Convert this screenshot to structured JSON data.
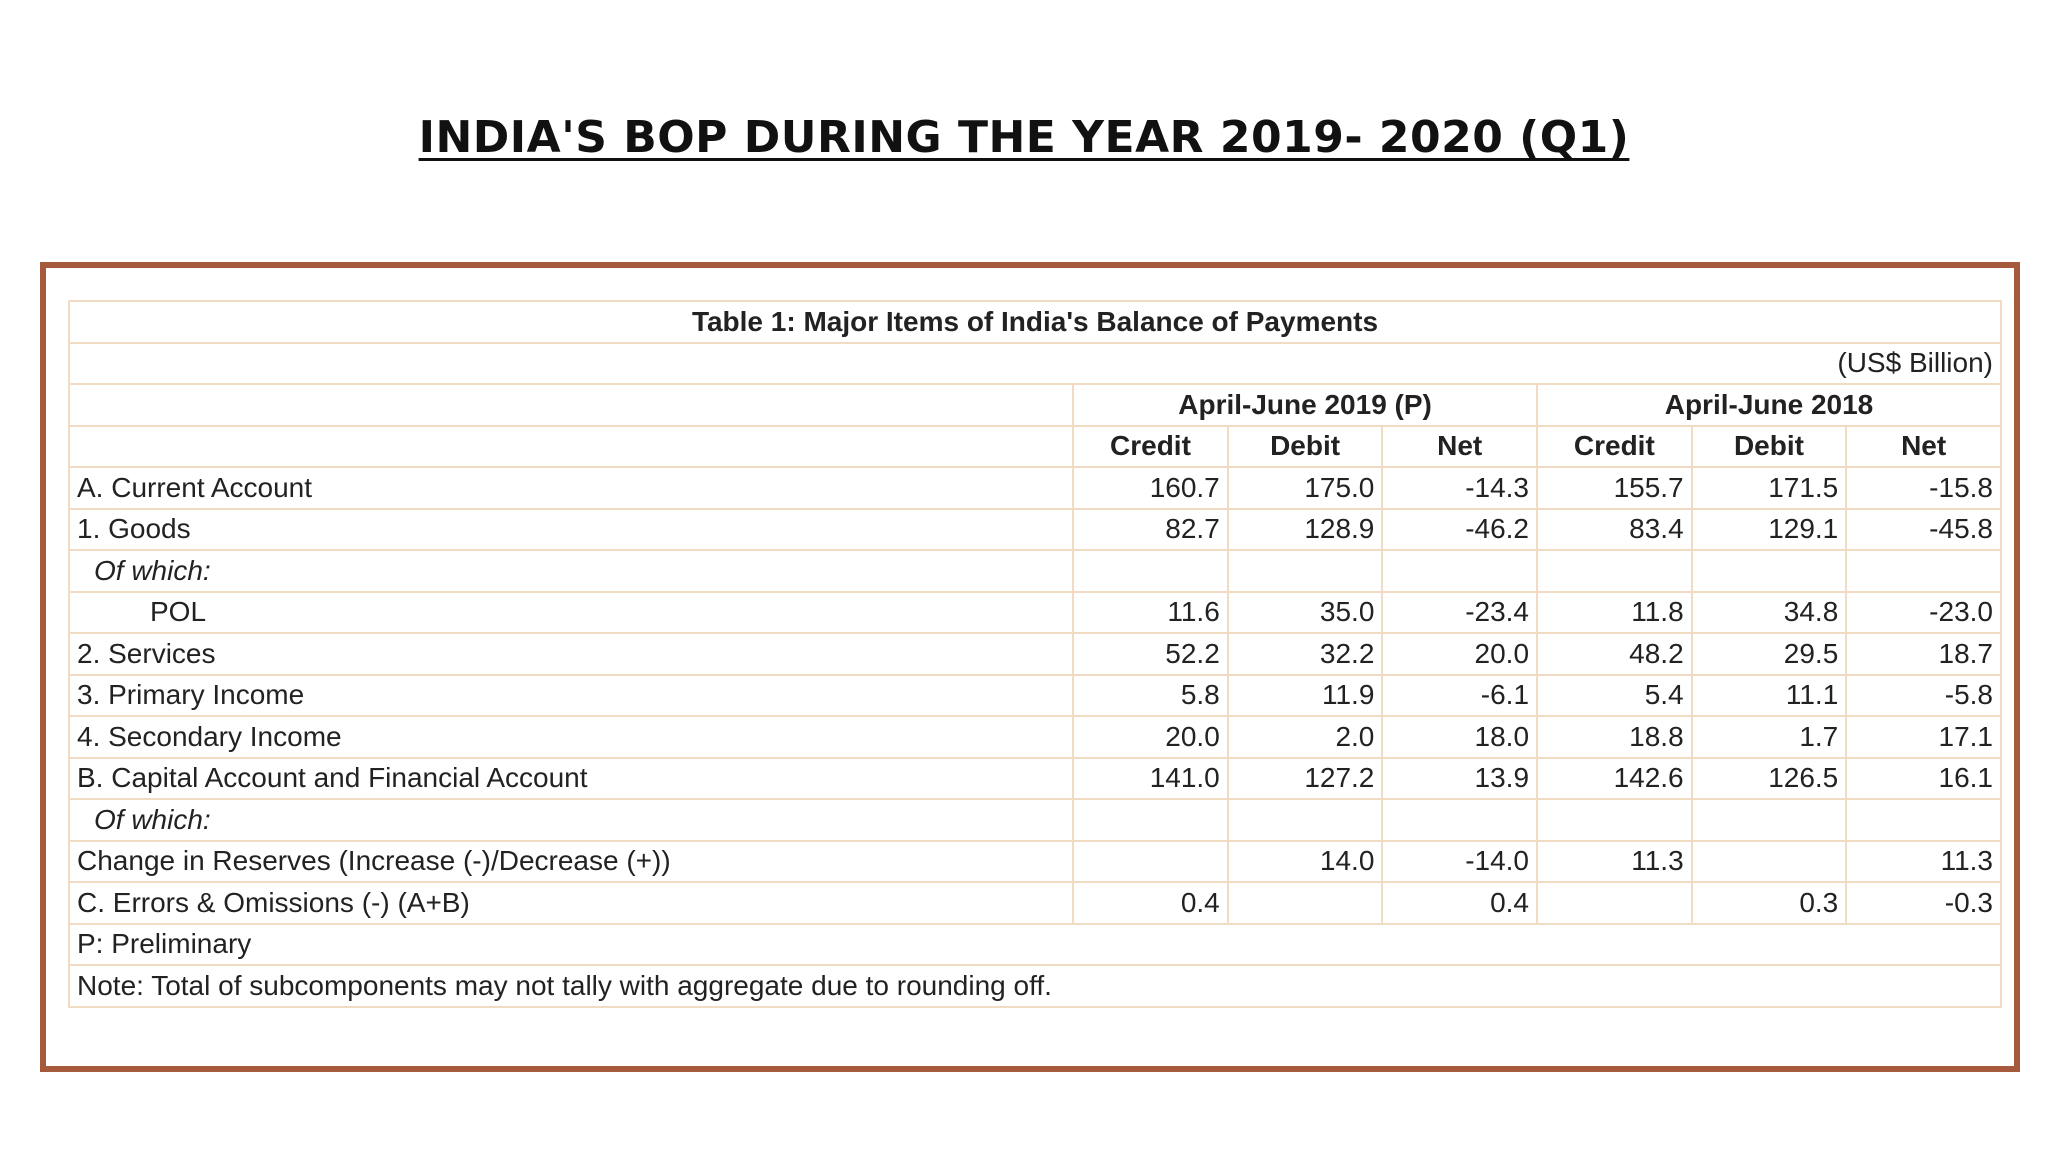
{
  "heading": "INDIA'S BOP DURING THE YEAR 2019- 2020  (Q1)",
  "table": {
    "title": "Table 1: Major Items of India's Balance of Payments",
    "unit": "(US$ Billion)",
    "periods": [
      "April-June 2019 (P)",
      "April-June 2018"
    ],
    "sub_headers": [
      "Credit",
      "Debit",
      "Net",
      "Credit",
      "Debit",
      "Net"
    ],
    "rows": [
      {
        "label": "A. Current Account",
        "style": "plain",
        "values": [
          "160.7",
          "175.0",
          "-14.3",
          "155.7",
          "171.5",
          "-15.8"
        ]
      },
      {
        "label": "1. Goods",
        "style": "plain",
        "values": [
          "82.7",
          "128.9",
          "-46.2",
          "83.4",
          "129.1",
          "-45.8"
        ]
      },
      {
        "label": "Of which:",
        "style": "italic",
        "values": [
          "",
          "",
          "",
          "",
          "",
          ""
        ]
      },
      {
        "label": "POL",
        "style": "indent",
        "values": [
          "11.6",
          "35.0",
          "-23.4",
          "11.8",
          "34.8",
          "-23.0"
        ]
      },
      {
        "label": "2. Services",
        "style": "plain",
        "values": [
          "52.2",
          "32.2",
          "20.0",
          "48.2",
          "29.5",
          "18.7"
        ]
      },
      {
        "label": "3. Primary Income",
        "style": "plain",
        "values": [
          "5.8",
          "11.9",
          "-6.1",
          "5.4",
          "11.1",
          "-5.8"
        ]
      },
      {
        "label": "4. Secondary Income",
        "style": "plain",
        "values": [
          "20.0",
          "2.0",
          "18.0",
          "18.8",
          "1.7",
          "17.1"
        ]
      },
      {
        "label": "B. Capital Account and Financial Account",
        "style": "plain",
        "values": [
          "141.0",
          "127.2",
          "13.9",
          "142.6",
          "126.5",
          "16.1"
        ]
      },
      {
        "label": "Of which:",
        "style": "italic",
        "values": [
          "",
          "",
          "",
          "",
          "",
          ""
        ]
      },
      {
        "label": "Change in Reserves (Increase (-)/Decrease (+))",
        "style": "plain",
        "values": [
          "",
          "14.0",
          "-14.0",
          "11.3",
          "",
          "11.3"
        ]
      },
      {
        "label": "C. Errors & Omissions (-) (A+B)",
        "style": "plain",
        "values": [
          "0.4",
          "",
          "0.4",
          "",
          "0.3",
          "-0.3"
        ]
      }
    ],
    "footnotes": [
      "P: Preliminary",
      "Note: Total of subcomponents may not tally with aggregate due to rounding off."
    ]
  },
  "colors": {
    "frame_border": "#a55a3c",
    "grid_lines": "#f1dcc3",
    "text": "#222222"
  }
}
